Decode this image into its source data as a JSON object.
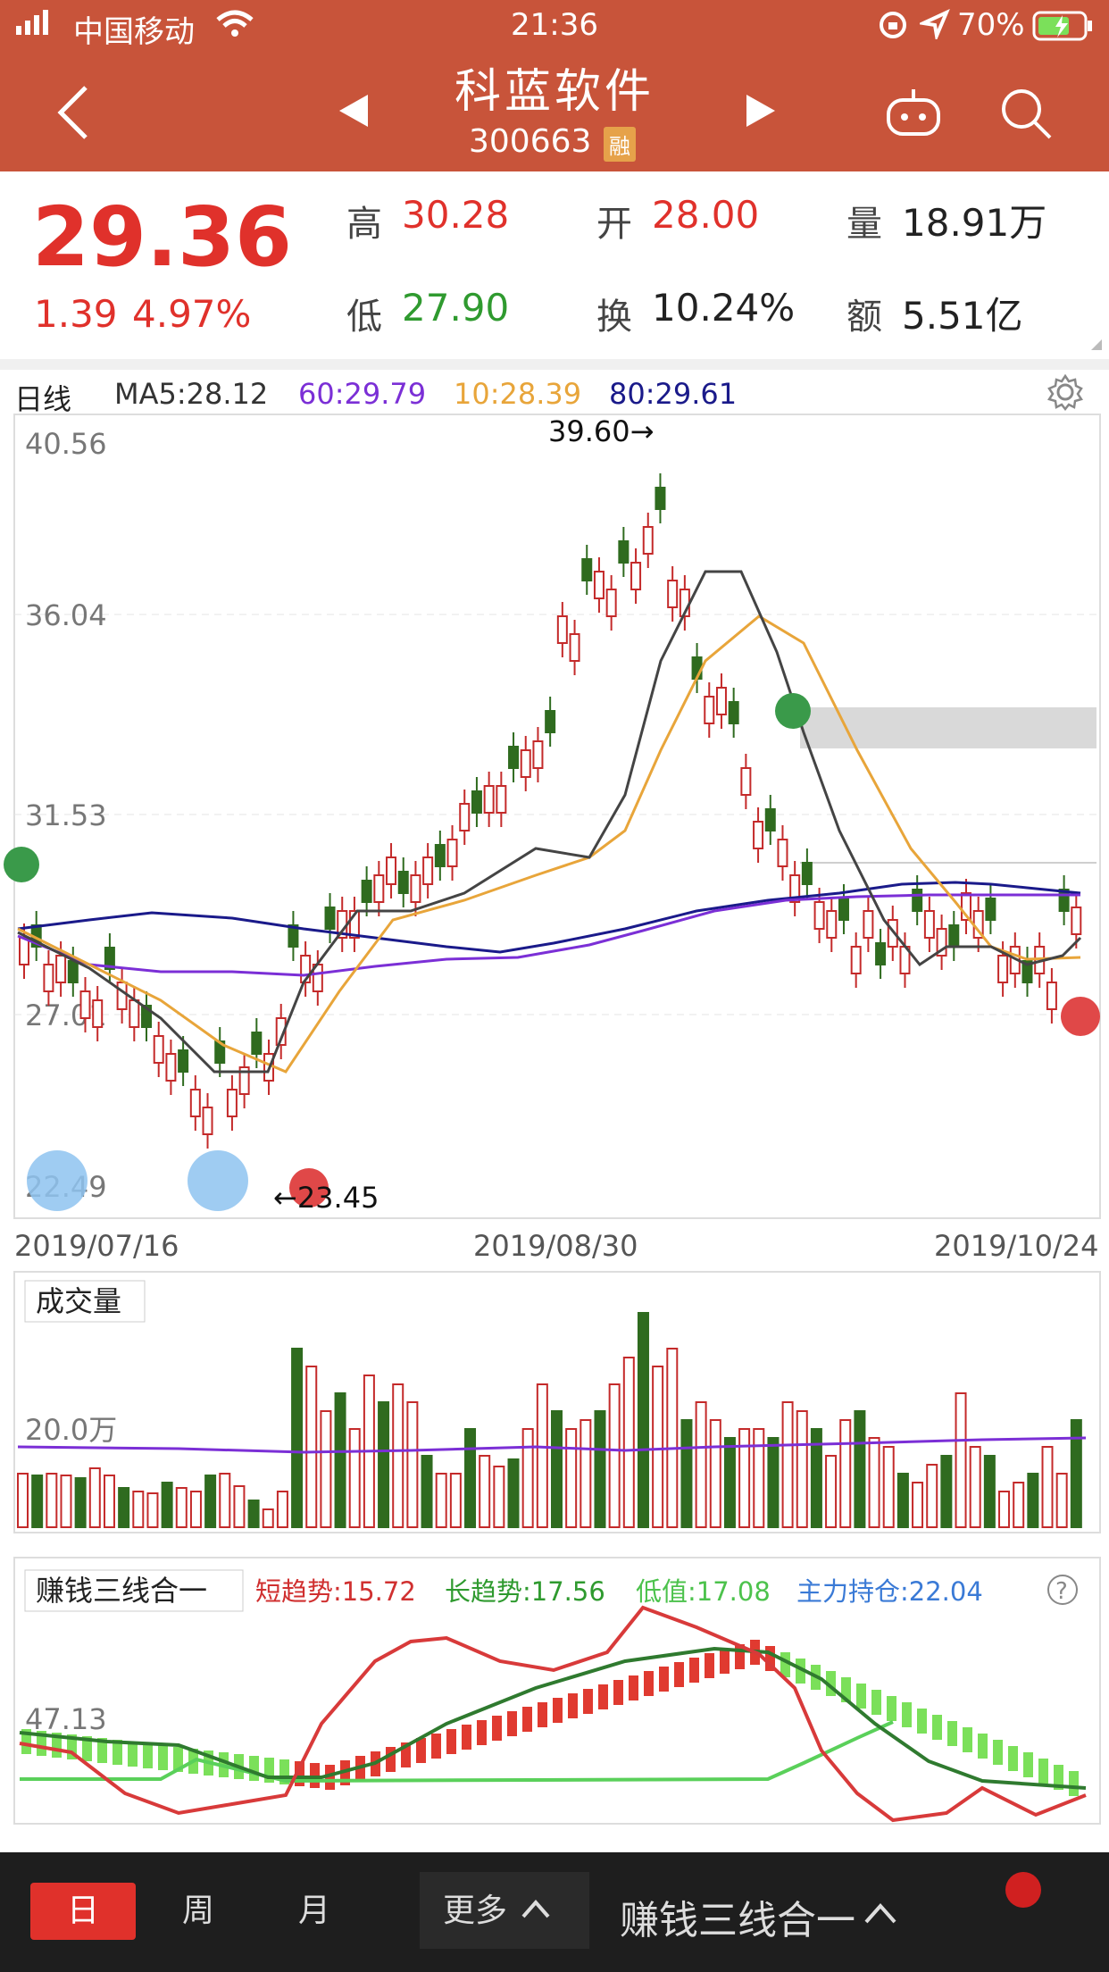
{
  "status_bar": {
    "carrier": "中国移动",
    "time": "21:36",
    "battery": "70%"
  },
  "header": {
    "title": "科蓝软件",
    "code": "300663",
    "badge": "融"
  },
  "quote": {
    "price": "29.36",
    "change": "1.39",
    "change_pct": "4.97%",
    "high_label": "高",
    "high": "30.28",
    "open_label": "开",
    "open": "28.00",
    "volume_label": "量",
    "volume": "18.91万",
    "low_label": "低",
    "low": "27.90",
    "turnover_label": "换",
    "turnover": "10.24%",
    "amount_label": "额",
    "amount": "5.51亿"
  },
  "ma_row": {
    "period": "日线",
    "ma5": "MA5:28.12",
    "ma60": "60:29.79",
    "ma10": "10:28.39",
    "ma80": "80:29.61"
  },
  "kline": {
    "y_labels": [
      "40.56",
      "36.04",
      "31.53",
      "27.01",
      "22.49"
    ],
    "high_note": "39.60→",
    "low_note": "←23.45",
    "dates": [
      "2019/07/16",
      "2019/08/30",
      "2019/10/24"
    ]
  },
  "volume": {
    "title": "成交量",
    "level": "20.0万"
  },
  "indicator": {
    "title": "赚钱三线合一",
    "short": "短趋势:15.72",
    "long": "长趋势:17.56",
    "low": "低值:17.08",
    "main": "主力持仓:22.04",
    "level": "47.13"
  },
  "bottom_bar": {
    "day": "日",
    "week": "周",
    "month": "月",
    "more": "更多",
    "indicator": "赚钱三线合一"
  },
  "colors": {
    "header": "#c8543a",
    "up": "#e0312b",
    "down": "#2f6b1f",
    "ma5": "#444444",
    "ma10": "#e8a53a",
    "ma60": "#7b2fd6",
    "ma80": "#1a1a8a"
  }
}
